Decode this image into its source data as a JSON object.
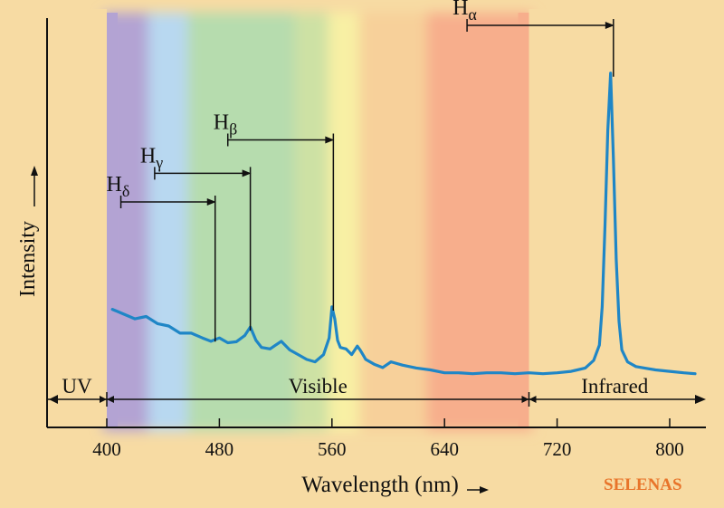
{
  "chart_data": {
    "type": "line",
    "xlabel": "Wavelength (nm)",
    "ylabel": "Intensity",
    "x_ticks": [
      400,
      480,
      560,
      640,
      720,
      800
    ],
    "xlim": [
      365,
      825
    ],
    "regions": [
      {
        "label": "UV",
        "from": 365,
        "to": 400
      },
      {
        "label": "Visible",
        "from": 400,
        "to": 700
      },
      {
        "label": "Infrared",
        "from": 700,
        "to": 825
      }
    ],
    "bands": [
      {
        "from": 400,
        "to": 432,
        "color": "#b3a3d3"
      },
      {
        "from": 432,
        "to": 460,
        "color": "#b8d8f0"
      },
      {
        "from": 460,
        "to": 536,
        "color": "#b6dcae"
      },
      {
        "from": 536,
        "to": 560,
        "color": "#cde1a4"
      },
      {
        "from": 560,
        "to": 582,
        "color": "#f8f0a4"
      },
      {
        "from": 582,
        "to": 630,
        "color": "#f7d09a"
      },
      {
        "from": 630,
        "to": 700,
        "color": "#f7ae8c"
      }
    ],
    "line_color": "#1f86c6",
    "series": [
      {
        "x": [
          404,
          412,
          420,
          428,
          436,
          444,
          452,
          460,
          468,
          474,
          480,
          486,
          492,
          498,
          502,
          506,
          510,
          516,
          520,
          524,
          530,
          536,
          542,
          548,
          554,
          558,
          560,
          562,
          564,
          566,
          570,
          574,
          578,
          580,
          582,
          584,
          590,
          596,
          602,
          610,
          620,
          630,
          640,
          650,
          660,
          670,
          680,
          690,
          700,
          710,
          720,
          730,
          740,
          746,
          750,
          752,
          754,
          756,
          758,
          760,
          762,
          764,
          766,
          770,
          776,
          782,
          790,
          800,
          810,
          818
        ],
        "y": [
          0.145,
          0.135,
          0.125,
          0.13,
          0.115,
          0.11,
          0.095,
          0.095,
          0.085,
          0.078,
          0.085,
          0.075,
          0.077,
          0.09,
          0.108,
          0.08,
          0.065,
          0.062,
          0.07,
          0.078,
          0.06,
          0.05,
          0.04,
          0.035,
          0.05,
          0.085,
          0.15,
          0.125,
          0.08,
          0.065,
          0.062,
          0.05,
          0.068,
          0.06,
          0.05,
          0.04,
          0.03,
          0.023,
          0.035,
          0.028,
          0.022,
          0.018,
          0.012,
          0.012,
          0.01,
          0.012,
          0.012,
          0.01,
          0.012,
          0.01,
          0.012,
          0.015,
          0.022,
          0.038,
          0.07,
          0.15,
          0.32,
          0.52,
          0.64,
          0.46,
          0.25,
          0.12,
          0.06,
          0.035,
          0.025,
          0.022,
          0.018,
          0.015,
          0.012,
          0.01
        ]
      }
    ],
    "lines": [
      {
        "label_main": "H",
        "label_sub": "α",
        "from": 656,
        "to": 760,
        "peak_y": 0.64,
        "level": 0.74
      },
      {
        "label_main": "H",
        "label_sub": "β",
        "from": 486,
        "to": 561,
        "peak_y": 0.15,
        "level": 0.5
      },
      {
        "label_main": "H",
        "label_sub": "γ",
        "from": 434,
        "to": 502,
        "peak_y": 0.108,
        "level": 0.43
      },
      {
        "label_main": "H",
        "label_sub": "δ",
        "from": 410,
        "to": 477,
        "peak_y": 0.085,
        "level": 0.37
      }
    ],
    "watermark": "SELENAS"
  }
}
